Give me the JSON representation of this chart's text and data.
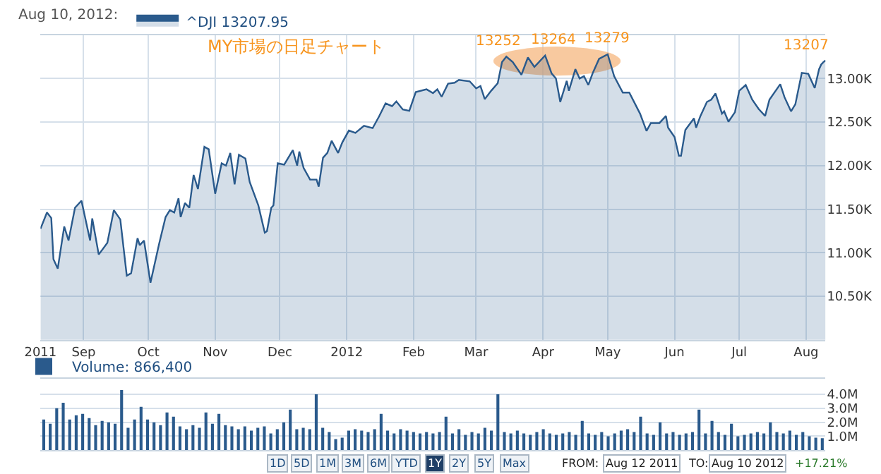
{
  "chart_data": [
    {
      "type": "area",
      "legend_title": "Aug 10, 2012:",
      "legend": "top left",
      "grid": true,
      "annotations": [
        "MY市場の日足チャート",
        {
          "text": "13252",
          "x": "2012-03-15",
          "y": 13252
        },
        {
          "text": "13264",
          "x": "2012-04-02",
          "y": 13264
        },
        {
          "text": "13279",
          "x": "2012-05-01",
          "y": 13279
        },
        {
          "text": "13207",
          "x": "2012-08-10",
          "y": 13207
        }
      ],
      "xlim": [
        "2011-08-12",
        "2012-08-10"
      ],
      "xticks": [
        {
          "value": "2011-08-12",
          "label": "2011"
        },
        {
          "value": "2011-09-01",
          "label": "Sep"
        },
        {
          "value": "2011-10-01",
          "label": "Oct"
        },
        {
          "value": "2011-11-01",
          "label": "Nov"
        },
        {
          "value": "2011-12-01",
          "label": "Dec"
        },
        {
          "value": "2012-01-01",
          "label": "2012"
        },
        {
          "value": "2012-02-01",
          "label": "Feb"
        },
        {
          "value": "2012-03-01",
          "label": "Mar"
        },
        {
          "value": "2012-04-01",
          "label": "Apr"
        },
        {
          "value": "2012-05-01",
          "label": "May"
        },
        {
          "value": "2012-06-01",
          "label": "Jun"
        },
        {
          "value": "2012-07-01",
          "label": "Jul"
        },
        {
          "value": "2012-08-01",
          "label": "Aug"
        }
      ],
      "ylim": [
        10000,
        13500
      ],
      "yticks": [
        {
          "value": 10500,
          "label": "10.50K"
        },
        {
          "value": 11000,
          "label": "11.00K"
        },
        {
          "value": 11500,
          "label": "11.50K"
        },
        {
          "value": 12000,
          "label": "12.00K"
        },
        {
          "value": 12500,
          "label": "12.50K"
        },
        {
          "value": 13000,
          "label": "13.00K"
        }
      ],
      "series": [
        {
          "name": "^DJI 13207.95",
          "color": "#2a5a8c",
          "x": [
            "2011-08-12",
            "2011-08-15",
            "2011-08-17",
            "2011-08-18",
            "2011-08-20",
            "2011-08-23",
            "2011-08-25",
            "2011-08-28",
            "2011-08-31",
            "2011-09-04",
            "2011-09-05",
            "2011-09-08",
            "2011-09-12",
            "2011-09-15",
            "2011-09-18",
            "2011-09-21",
            "2011-09-23",
            "2011-09-26",
            "2011-09-27",
            "2011-09-29",
            "2011-10-02",
            "2011-10-06",
            "2011-10-09",
            "2011-10-11",
            "2011-10-13",
            "2011-10-15",
            "2011-10-16",
            "2011-10-18",
            "2011-10-20",
            "2011-10-22",
            "2011-10-24",
            "2011-10-27",
            "2011-10-29",
            "2011-11-01",
            "2011-11-04",
            "2011-11-06",
            "2011-11-08",
            "2011-11-10",
            "2011-11-12",
            "2011-11-15",
            "2011-11-17",
            "2011-11-21",
            "2011-11-24",
            "2011-11-25",
            "2011-11-27",
            "2011-11-28",
            "2011-11-30",
            "2011-12-03",
            "2011-12-07",
            "2011-12-09",
            "2011-12-10",
            "2011-12-12",
            "2011-12-15",
            "2011-12-18",
            "2011-12-19",
            "2011-12-21",
            "2011-12-23",
            "2011-12-25",
            "2011-12-28",
            "2011-12-30",
            "2012-01-02",
            "2012-01-05",
            "2012-01-09",
            "2012-01-13",
            "2012-01-16",
            "2012-01-19",
            "2012-01-22",
            "2012-01-24",
            "2012-01-27",
            "2012-01-30",
            "2012-02-02",
            "2012-02-07",
            "2012-02-10",
            "2012-02-12",
            "2012-02-14",
            "2012-02-17",
            "2012-02-20",
            "2012-02-22",
            "2012-02-27",
            "2012-03-01",
            "2012-03-03",
            "2012-03-05",
            "2012-03-08",
            "2012-03-11",
            "2012-03-13",
            "2012-03-15",
            "2012-03-18",
            "2012-03-22",
            "2012-03-25",
            "2012-03-28",
            "2012-04-02",
            "2012-04-05",
            "2012-04-07",
            "2012-04-09",
            "2012-04-12",
            "2012-04-13",
            "2012-04-16",
            "2012-04-18",
            "2012-04-20",
            "2012-04-22",
            "2012-04-24",
            "2012-04-27",
            "2012-05-01",
            "2012-05-04",
            "2012-05-08",
            "2012-05-11",
            "2012-05-16",
            "2012-05-19",
            "2012-05-21",
            "2012-05-25",
            "2012-05-28",
            "2012-05-29",
            "2012-06-01",
            "2012-06-03",
            "2012-06-04",
            "2012-06-06",
            "2012-06-10",
            "2012-06-11",
            "2012-06-13",
            "2012-06-16",
            "2012-06-18",
            "2012-06-20",
            "2012-06-23",
            "2012-06-24",
            "2012-06-26",
            "2012-06-29",
            "2012-07-01",
            "2012-07-04",
            "2012-07-07",
            "2012-07-10",
            "2012-07-13",
            "2012-07-15",
            "2012-07-20",
            "2012-07-22",
            "2012-07-25",
            "2012-07-27",
            "2012-07-30",
            "2012-08-02",
            "2012-08-05",
            "2012-08-07",
            "2012-08-08",
            "2012-08-09",
            "2012-08-10"
          ],
          "values": [
            11274,
            11462,
            11398,
            10925,
            10817,
            11301,
            11140,
            11516,
            11597,
            11140,
            11393,
            10979,
            11113,
            11489,
            11382,
            10737,
            10764,
            11167,
            11086,
            11140,
            10656,
            11102,
            11409,
            11489,
            11462,
            11624,
            11409,
            11570,
            11516,
            11893,
            11731,
            12215,
            12188,
            11677,
            12027,
            12000,
            12145,
            11785,
            12124,
            12081,
            11812,
            11543,
            11231,
            11247,
            11516,
            11543,
            12027,
            12011,
            12177,
            12000,
            12161,
            11973,
            11839,
            11839,
            11758,
            12091,
            12145,
            12285,
            12145,
            12269,
            12403,
            12376,
            12457,
            12430,
            12565,
            12715,
            12683,
            12737,
            12645,
            12629,
            12844,
            12876,
            12833,
            12876,
            12790,
            12941,
            12952,
            12984,
            12968,
            12887,
            12914,
            12763,
            12860,
            12946,
            13188,
            13252,
            13188,
            13043,
            13242,
            13134,
            13264,
            13059,
            13000,
            12731,
            12973,
            12860,
            13107,
            13000,
            13027,
            12925,
            13059,
            13226,
            13279,
            13027,
            12839,
            12839,
            12597,
            12398,
            12489,
            12489,
            12570,
            12436,
            12328,
            12113,
            12113,
            12409,
            12543,
            12436,
            12570,
            12731,
            12758,
            12828,
            12597,
            12624,
            12505,
            12613,
            12860,
            12925,
            12758,
            12650,
            12570,
            12758,
            12935,
            12785,
            12624,
            12704,
            13065,
            13054,
            12892,
            13107,
            13161,
            13188,
            13207
          ]
        }
      ]
    },
    {
      "type": "bar",
      "legend": "top left",
      "grid": true,
      "annotations": [
        "1D",
        "5D",
        "1M",
        "3M",
        "6M",
        "YTD",
        "1Y",
        "2Y",
        "5Y",
        "Max",
        "FROM:",
        "Aug 12 2011",
        "TO:",
        "Aug 10 2012",
        "+17.21%"
      ],
      "categories": [
        null,
        null,
        null,
        null,
        null,
        null,
        null,
        null,
        null,
        null,
        null,
        null,
        null,
        null,
        null,
        null,
        null,
        null,
        null,
        null,
        null,
        null,
        null,
        null,
        null,
        null,
        null,
        null,
        null,
        null,
        null,
        null,
        null,
        null,
        null,
        null,
        null,
        null,
        null,
        null,
        null,
        null,
        null,
        null,
        null,
        null,
        null,
        null,
        null,
        null,
        null,
        null,
        null,
        null,
        null,
        null,
        null,
        null,
        null,
        null,
        null,
        null,
        null,
        null,
        null,
        null,
        null,
        null,
        null,
        null,
        null,
        null,
        null,
        null,
        null,
        null,
        null,
        null,
        null,
        null,
        null,
        null,
        null,
        null,
        null,
        null,
        null,
        null,
        null,
        null,
        null,
        null,
        null,
        null,
        null,
        null,
        null,
        null,
        null,
        null,
        null,
        null,
        null,
        null,
        null,
        null,
        null,
        null,
        null,
        null,
        null,
        null,
        null,
        null,
        null,
        null,
        null,
        null,
        null,
        null,
        null
      ],
      "ylim": [
        0,
        5.1
      ],
      "yticks": [
        {
          "value": 1,
          "label": "1.0M"
        },
        {
          "value": 2,
          "label": "2.0M"
        },
        {
          "value": 3,
          "label": "3.0M"
        },
        {
          "value": 4,
          "label": "4.0M"
        }
      ],
      "series": [
        {
          "name": "Volume: 866,400",
          "color": "#2a5a8c",
          "values": [
            2.2,
            1.9,
            3.0,
            3.4,
            2.2,
            2.5,
            2.6,
            2.3,
            1.8,
            2.1,
            2.0,
            1.9,
            4.3,
            1.6,
            2.2,
            3.1,
            2.2,
            2.0,
            1.8,
            2.7,
            2.4,
            1.7,
            1.5,
            1.8,
            1.6,
            2.7,
            1.9,
            2.6,
            1.8,
            1.7,
            1.5,
            1.7,
            1.4,
            1.6,
            1.7,
            1.2,
            1.5,
            2.0,
            2.9,
            1.5,
            1.6,
            1.5,
            4.0,
            1.6,
            1.3,
            0.8,
            0.9,
            1.4,
            1.5,
            1.4,
            1.3,
            1.5,
            2.6,
            1.4,
            1.2,
            1.5,
            1.4,
            1.3,
            1.2,
            1.3,
            1.2,
            1.3,
            2.4,
            1.2,
            1.5,
            1.1,
            1.3,
            1.2,
            1.6,
            1.4,
            4.0,
            1.3,
            1.2,
            1.4,
            1.2,
            1.1,
            1.3,
            1.5,
            1.2,
            1.1,
            1.2,
            1.3,
            1.1,
            2.1,
            1.2,
            1.1,
            1.3,
            1.0,
            1.2,
            1.4,
            1.5,
            1.3,
            2.4,
            1.2,
            1.1,
            2.0,
            1.2,
            1.3,
            1.1,
            1.2,
            1.3,
            2.9,
            1.2,
            2.1,
            1.3,
            1.1,
            1.9,
            1.0,
            1.1,
            1.2,
            1.3,
            1.2,
            2.0,
            1.3,
            1.2,
            1.4,
            1.1,
            1.3,
            1.0,
            0.9,
            0.8664
          ]
        }
      ]
    }
  ]
}
